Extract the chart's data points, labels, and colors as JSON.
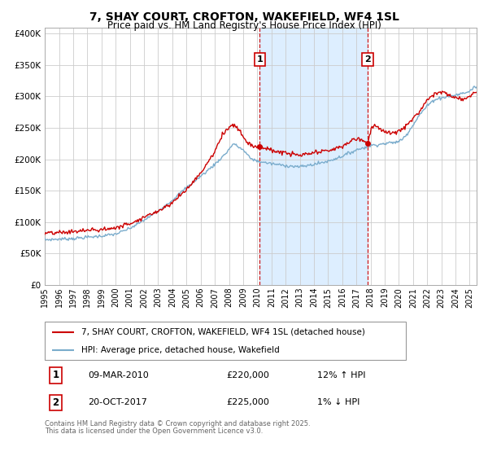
{
  "title": "7, SHAY COURT, CROFTON, WAKEFIELD, WF4 1SL",
  "subtitle": "Price paid vs. HM Land Registry's House Price Index (HPI)",
  "legend_line1": "7, SHAY COURT, CROFTON, WAKEFIELD, WF4 1SL (detached house)",
  "legend_line2": "HPI: Average price, detached house, Wakefield",
  "marker1_date": "09-MAR-2010",
  "marker1_price": 220000,
  "marker1_hpi": "12% ↑ HPI",
  "marker2_date": "20-OCT-2017",
  "marker2_price": 225000,
  "marker2_hpi": "1% ↓ HPI",
  "footnote1": "Contains HM Land Registry data © Crown copyright and database right 2025.",
  "footnote2": "This data is licensed under the Open Government Licence v3.0.",
  "line_color_red": "#cc0000",
  "line_color_blue": "#7aaccc",
  "shaded_region_color": "#ddeeff",
  "background_color": "#ffffff",
  "grid_color": "#cccccc",
  "xlim_start": 1995.0,
  "xlim_end": 2025.5,
  "ylim_bottom": 0,
  "ylim_top": 410000,
  "marker1_x": 2010.18,
  "marker2_x": 2017.8,
  "yticks": [
    0,
    50000,
    100000,
    150000,
    200000,
    250000,
    300000,
    350000,
    400000
  ],
  "ytick_labels": [
    "£0",
    "£50K",
    "£100K",
    "£150K",
    "£200K",
    "£250K",
    "£300K",
    "£350K",
    "£400K"
  ]
}
